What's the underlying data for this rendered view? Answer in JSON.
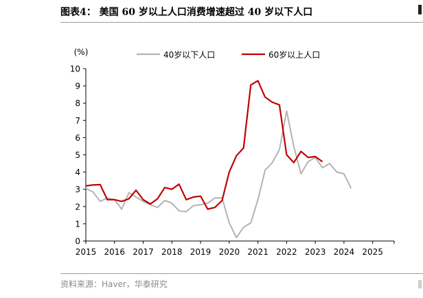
{
  "title": "图表4：   美国 60 岁以上人口消费增速超过 40 岁以下人口",
  "source": "资料来源：Haver，华泰研究",
  "chart_data": {
    "type": "line",
    "unit_label": "(%)",
    "ylim": [
      0,
      10
    ],
    "yticks": [
      0,
      1,
      2,
      3,
      4,
      5,
      6,
      7,
      8,
      9,
      10
    ],
    "xlim": [
      2015,
      2025.75
    ],
    "xticks": [
      2015,
      2016,
      2017,
      2018,
      2019,
      2020,
      2021,
      2022,
      2023,
      2024,
      2025
    ],
    "legend_position": "top",
    "grid": false,
    "series": [
      {
        "name": "40岁以下人口",
        "color": "#b3b3b3",
        "points": [
          [
            2015.0,
            3.05
          ],
          [
            2015.25,
            2.85
          ],
          [
            2015.5,
            2.3
          ],
          [
            2015.75,
            2.5
          ],
          [
            2016.0,
            2.4
          ],
          [
            2016.25,
            1.85
          ],
          [
            2016.5,
            2.8
          ],
          [
            2016.75,
            2.55
          ],
          [
            2017.0,
            2.3
          ],
          [
            2017.25,
            2.1
          ],
          [
            2017.5,
            1.95
          ],
          [
            2017.75,
            2.35
          ],
          [
            2018.0,
            2.2
          ],
          [
            2018.25,
            1.75
          ],
          [
            2018.5,
            1.7
          ],
          [
            2018.75,
            2.05
          ],
          [
            2019.0,
            2.1
          ],
          [
            2019.25,
            2.2
          ],
          [
            2019.5,
            2.5
          ],
          [
            2019.75,
            2.5
          ],
          [
            2020.0,
            1.05
          ],
          [
            2020.25,
            0.2
          ],
          [
            2020.5,
            0.8
          ],
          [
            2020.75,
            1.05
          ],
          [
            2021.0,
            2.4
          ],
          [
            2021.25,
            4.1
          ],
          [
            2021.5,
            4.55
          ],
          [
            2021.75,
            5.3
          ],
          [
            2022.0,
            7.55
          ],
          [
            2022.25,
            5.5
          ],
          [
            2022.5,
            3.9
          ],
          [
            2022.75,
            4.6
          ],
          [
            2023.0,
            4.85
          ],
          [
            2023.25,
            4.25
          ],
          [
            2023.5,
            4.5
          ],
          [
            2023.75,
            4.0
          ],
          [
            2024.0,
            3.9
          ],
          [
            2024.25,
            3.05
          ]
        ]
      },
      {
        "name": "60岁以上人口",
        "color": "#c00000",
        "points": [
          [
            2015.0,
            3.2
          ],
          [
            2015.25,
            3.25
          ],
          [
            2015.5,
            3.27
          ],
          [
            2015.75,
            2.4
          ],
          [
            2016.0,
            2.4
          ],
          [
            2016.25,
            2.3
          ],
          [
            2016.5,
            2.45
          ],
          [
            2016.75,
            2.95
          ],
          [
            2017.0,
            2.4
          ],
          [
            2017.25,
            2.15
          ],
          [
            2017.5,
            2.45
          ],
          [
            2017.75,
            3.1
          ],
          [
            2018.0,
            3.0
          ],
          [
            2018.25,
            3.3
          ],
          [
            2018.5,
            2.4
          ],
          [
            2018.75,
            2.55
          ],
          [
            2019.0,
            2.6
          ],
          [
            2019.25,
            1.85
          ],
          [
            2019.5,
            1.95
          ],
          [
            2019.75,
            2.35
          ],
          [
            2020.0,
            4.0
          ],
          [
            2020.25,
            4.95
          ],
          [
            2020.5,
            5.4
          ],
          [
            2020.75,
            9.05
          ],
          [
            2021.0,
            9.3
          ],
          [
            2021.25,
            8.35
          ],
          [
            2021.5,
            8.05
          ],
          [
            2021.75,
            7.9
          ],
          [
            2022.0,
            5.0
          ],
          [
            2022.25,
            4.55
          ],
          [
            2022.5,
            5.2
          ],
          [
            2022.75,
            4.85
          ],
          [
            2023.0,
            4.9
          ],
          [
            2023.25,
            4.6
          ]
        ]
      }
    ]
  }
}
